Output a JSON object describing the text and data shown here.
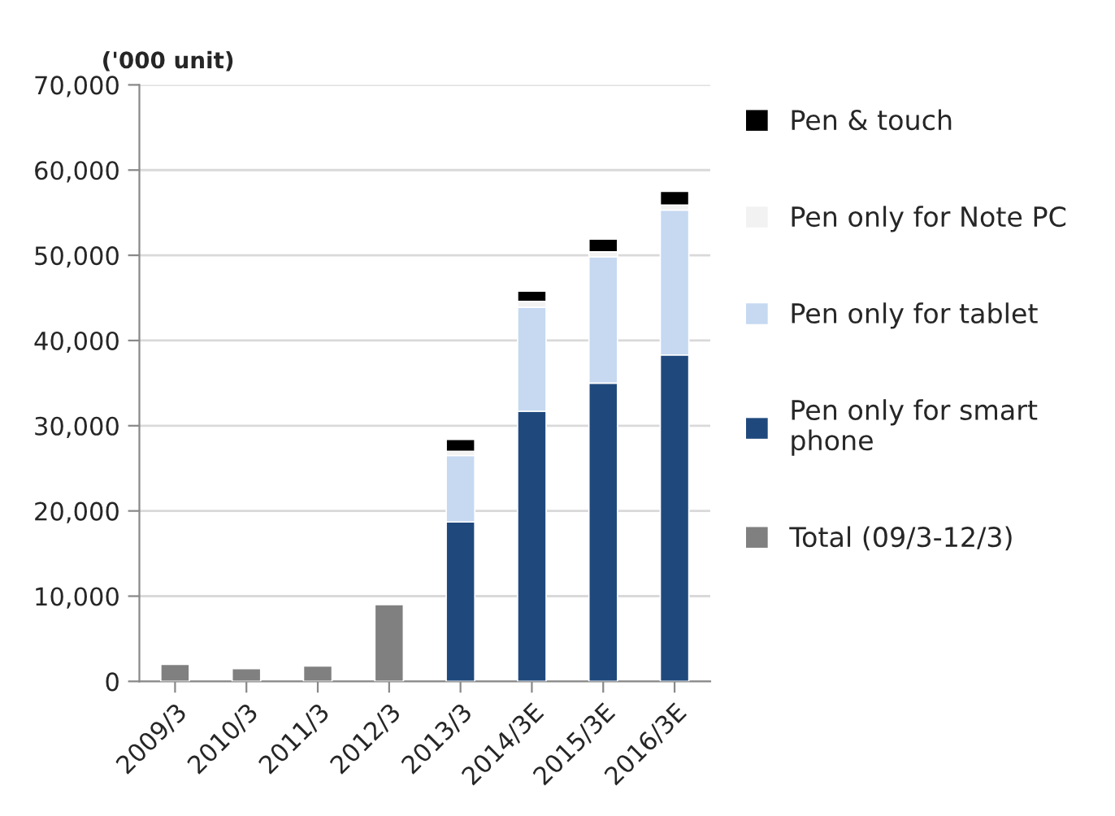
{
  "chart_data": {
    "type": "bar",
    "stacked": true,
    "ylabel": "('000 unit)",
    "categories": [
      "2009/3",
      "2010/3",
      "2011/3",
      "2012/3",
      "2013/3",
      "2014/3E",
      "2015/3E",
      "2016/3E"
    ],
    "series": [
      {
        "name": "Total (09/3-12/3)",
        "color": "#808080",
        "values": [
          2000,
          1500,
          1800,
          9000,
          null,
          null,
          null,
          null
        ]
      },
      {
        "name": "Pen only for smart\nphone",
        "color": "#1f497d",
        "values": [
          null,
          null,
          null,
          null,
          18700,
          31700,
          35000,
          38300
        ]
      },
      {
        "name": "Pen only for tablet",
        "color": "#c6d9f1",
        "values": [
          null,
          null,
          null,
          null,
          7800,
          12200,
          14800,
          17000
        ]
      },
      {
        "name": "Pen only for Note PC",
        "color": "#f2f2f2",
        "values": [
          null,
          null,
          null,
          null,
          500,
          700,
          600,
          600
        ]
      },
      {
        "name": "Pen & touch",
        "color": "#000000",
        "values": [
          null,
          null,
          null,
          null,
          1400,
          1200,
          1500,
          1600
        ]
      }
    ],
    "ylim": [
      0,
      70000
    ],
    "yticks": [
      {
        "value": 0,
        "label": "0"
      },
      {
        "value": 10000,
        "label": "10,000"
      },
      {
        "value": 20000,
        "label": "20,000"
      },
      {
        "value": 30000,
        "label": "30,000"
      },
      {
        "value": 40000,
        "label": "40,000"
      },
      {
        "value": 50000,
        "label": "50,000"
      },
      {
        "value": 60000,
        "label": "60,000"
      },
      {
        "value": 70000,
        "label": "70,000"
      }
    ],
    "grid": "y",
    "legend": "right"
  }
}
